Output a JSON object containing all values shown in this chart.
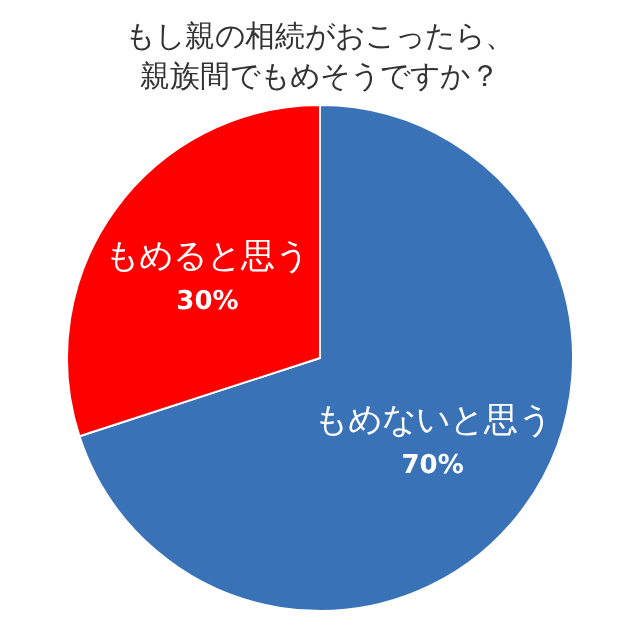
{
  "chart_data": {
    "type": "pie",
    "title": "もし親の相続がおこったら、親族間でもめそうですか？",
    "categories": [
      "もめないと思う",
      "もめると思う"
    ],
    "values": [
      70,
      30
    ],
    "colors": [
      "#3a72b8",
      "#ff0000"
    ],
    "value_labels": [
      "70%",
      "30%"
    ],
    "legend": false
  }
}
